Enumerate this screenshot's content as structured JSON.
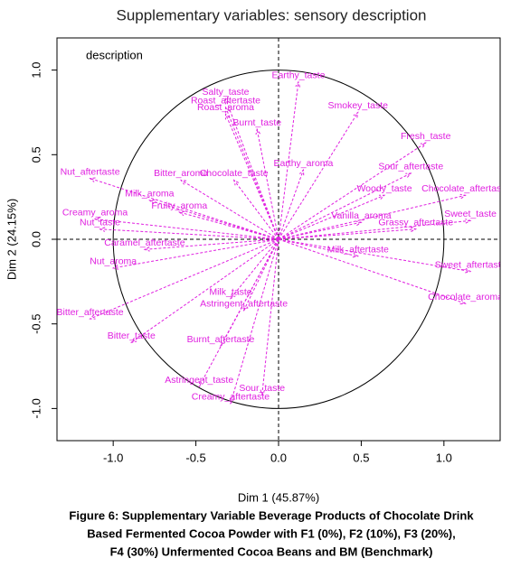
{
  "chart_data": {
    "type": "arrows",
    "title": "Supplementary variables: sensory description",
    "legend_label": "description",
    "xlabel": "Dim 1 (45.87%)",
    "ylabel": "Dim 2 (24.15%)",
    "xlim": [
      -1.34,
      1.34
    ],
    "ylim": [
      -1.19,
      1.19
    ],
    "xticks": [
      {
        "value": -1,
        "label": "-1.0"
      },
      -0.5,
      {
        "value": 0,
        "label": "0.0"
      },
      0.5,
      {
        "value": 1,
        "label": "1.0"
      }
    ],
    "yticks": [
      {
        "value": -1,
        "label": "-1.0"
      },
      -0.5,
      {
        "value": 0,
        "label": "0.0"
      },
      0.5,
      {
        "value": 1,
        "label": "1.0"
      }
    ],
    "color": "#e020e0",
    "points": [
      {
        "name": "Earthy_taste",
        "x": 0.12,
        "y": 0.93
      },
      {
        "name": "Salty_taste",
        "x": -0.32,
        "y": 0.83
      },
      {
        "name": "Roast_aftertaste",
        "x": -0.32,
        "y": 0.78
      },
      {
        "name": "Roast_aroma",
        "x": -0.32,
        "y": 0.74
      },
      {
        "name": "Burnt_taste",
        "x": -0.13,
        "y": 0.65
      },
      {
        "name": "Smokey_taste",
        "x": 0.48,
        "y": 0.75
      },
      {
        "name": "Fresh_taste",
        "x": 0.89,
        "y": 0.57
      },
      {
        "name": "Earthy_aroma",
        "x": 0.15,
        "y": 0.41
      },
      {
        "name": "Sour_aftertaste",
        "x": 0.8,
        "y": 0.39
      },
      {
        "name": "Bitter_aroma",
        "x": -0.59,
        "y": 0.35
      },
      {
        "name": "Chocolate_taste",
        "x": -0.27,
        "y": 0.35
      },
      {
        "name": "Nut_aftertaste",
        "x": -1.14,
        "y": 0.36
      },
      {
        "name": "Milk_aroma",
        "x": -0.78,
        "y": 0.23
      },
      {
        "name": "Fruity_aroma",
        "x": -0.6,
        "y": 0.16
      },
      {
        "name": "Woody_taste",
        "x": 0.64,
        "y": 0.26
      },
      {
        "name": "Chocolate_aftertaste",
        "x": 1.13,
        "y": 0.26
      },
      {
        "name": "Sweet_taste",
        "x": 1.16,
        "y": 0.11
      },
      {
        "name": "Vanilla_aroma",
        "x": 0.5,
        "y": 0.1
      },
      {
        "name": "Grassy_aftertaste",
        "x": 0.83,
        "y": 0.06
      },
      {
        "name": "Creamy_aroma",
        "x": -1.11,
        "y": 0.12
      },
      {
        "name": "Nut_taste",
        "x": -1.08,
        "y": 0.06
      },
      {
        "name": "Milk_aftertaste",
        "x": 0.48,
        "y": -0.1
      },
      {
        "name": "Sweet_aftertaste",
        "x": 1.16,
        "y": -0.19
      },
      {
        "name": "Chocolate_aroma",
        "x": 1.13,
        "y": -0.38
      },
      {
        "name": "Caramel_aftertaste",
        "x": -0.81,
        "y": -0.06
      },
      {
        "name": "Nut_aroma",
        "x": -1.0,
        "y": -0.17
      },
      {
        "name": "Milk_taste",
        "x": -0.29,
        "y": -0.35
      },
      {
        "name": "Astringent_aftertaste",
        "x": -0.21,
        "y": -0.42
      },
      {
        "name": "Bitter_aftertaste",
        "x": -1.14,
        "y": -0.47
      },
      {
        "name": "Bitter_taste",
        "x": -0.89,
        "y": -0.61
      },
      {
        "name": "Burnt_aftertaste",
        "x": -0.35,
        "y": -0.63
      },
      {
        "name": "Astringent_taste",
        "x": -0.48,
        "y": -0.87
      },
      {
        "name": "Sour_taste",
        "x": -0.1,
        "y": -0.92
      },
      {
        "name": "Creamy_aftertaste",
        "x": -0.29,
        "y": -0.97
      }
    ]
  },
  "caption": [
    "Figure 6: Supplementary Variable Beverage Products of Chocolate Drink",
    "Based Fermented Cocoa Powder with F1 (0%), F2 (10%), F3 (20%),",
    "F4 (30%) Unfermented Cocoa Beans and BM (Benchmark)"
  ]
}
